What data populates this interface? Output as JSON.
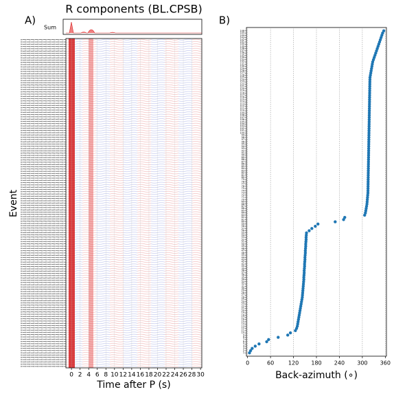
{
  "panel_labels": [
    "A)",
    "B)"
  ],
  "chart_data": [
    {
      "type": "waveform",
      "title": "R components (BL.CPSB)",
      "sum_label": "Sum",
      "xlabel": "Time after P (s)",
      "ylabel": "Event",
      "xlim": [
        -1.3,
        30.3
      ],
      "xticks": [
        0,
        2,
        4,
        6,
        8,
        10,
        12,
        14,
        16,
        18,
        20,
        22,
        24,
        26,
        28,
        30
      ]
    },
    {
      "type": "scatter",
      "xlabel": "Back-azimuth (∘)",
      "color": "#1f77b4",
      "grid": true,
      "xlim": [
        -3,
        363
      ],
      "xticks": [
        0,
        60,
        120,
        180,
        240,
        300,
        360
      ],
      "ylim": [
        -0.5,
        147.5
      ],
      "yticks": [
        1,
        2,
        3,
        4,
        5,
        6,
        7,
        8,
        9,
        10,
        11,
        12,
        13,
        14,
        15,
        16,
        17,
        18,
        19,
        20,
        21,
        22,
        23,
        24,
        25,
        26,
        27,
        28,
        29,
        30,
        31,
        32,
        33,
        34,
        35,
        36,
        37,
        38,
        39,
        40,
        41,
        42,
        43,
        44,
        45,
        46,
        47,
        48,
        49,
        50,
        51,
        52,
        53,
        54,
        55,
        56,
        57,
        58,
        59,
        60,
        61,
        62,
        63,
        64,
        65,
        66,
        67,
        68,
        69,
        70,
        71,
        72,
        73,
        74,
        75,
        76,
        77,
        78,
        79,
        80,
        81,
        82,
        83,
        84,
        85,
        86,
        87,
        88,
        89,
        90,
        91,
        92,
        93,
        94,
        95,
        96,
        97,
        98,
        99,
        100,
        101,
        102,
        103,
        104,
        105,
        106,
        107,
        108,
        109,
        110,
        111,
        112,
        113,
        114,
        115,
        116,
        117,
        118,
        119,
        120,
        121,
        122,
        123,
        124,
        125,
        126,
        127,
        128,
        129,
        130,
        131,
        132,
        133,
        134,
        135,
        136,
        137,
        138,
        139,
        140,
        141,
        142,
        143,
        144,
        145,
        146
      ],
      "y": [
        1,
        2,
        3,
        4,
        5,
        6,
        7,
        8,
        9,
        10,
        11,
        12,
        13,
        14,
        15,
        16,
        17,
        18,
        19,
        20,
        21,
        22,
        23,
        24,
        25,
        26,
        27,
        28,
        29,
        30,
        31,
        32,
        33,
        34,
        35,
        36,
        37,
        38,
        39,
        40,
        41,
        42,
        43,
        44,
        45,
        46,
        47,
        48,
        49,
        50,
        51,
        52,
        53,
        54,
        55,
        56,
        57,
        58,
        59,
        60,
        61,
        62,
        63,
        64,
        65,
        66,
        67,
        68,
        69,
        70,
        71,
        72,
        73,
        74,
        75,
        76,
        77,
        78,
        79,
        80,
        81,
        82,
        83,
        84,
        85,
        86,
        87,
        88,
        89,
        90,
        91,
        92,
        93,
        94,
        95,
        96,
        97,
        98,
        99,
        100,
        101,
        102,
        103,
        104,
        105,
        106,
        107,
        108,
        109,
        110,
        111,
        112,
        113,
        114,
        115,
        116,
        117,
        118,
        119,
        120,
        121,
        122,
        123,
        124,
        125,
        126,
        127,
        128,
        129,
        130,
        131,
        132,
        133,
        134,
        135,
        136,
        137,
        138,
        139,
        140,
        141,
        142,
        143,
        144,
        145,
        146
      ],
      "x": [
        5,
        8,
        12,
        20,
        30,
        50,
        55,
        80,
        105,
        112,
        125,
        128,
        130,
        131,
        132,
        133,
        134,
        135,
        136,
        137,
        138,
        139,
        140,
        141,
        142,
        143,
        143.5,
        144,
        144.5,
        145,
        145.5,
        146,
        146.5,
        147,
        147,
        147.5,
        148,
        148,
        148.5,
        149,
        149,
        149.5,
        150,
        150,
        150.5,
        151,
        151,
        151.5,
        152,
        152,
        152.5,
        153,
        153,
        153.5,
        154,
        161,
        168,
        177,
        184,
        229,
        251,
        254,
        306,
        308,
        309,
        310,
        311,
        312,
        312.5,
        313,
        313.5,
        314,
        314.6,
        314.7,
        314.8,
        314.9,
        315,
        315.1,
        315.2,
        315.3,
        315.4,
        315.5,
        315.6,
        315.7,
        315.8,
        315.9,
        316,
        316.1,
        316.2,
        316.3,
        316.4,
        316.5,
        316.6,
        316.7,
        316.8,
        316.9,
        317,
        317.1,
        317.2,
        317.3,
        317.4,
        317.5,
        317.6,
        317.7,
        317.8,
        317.9,
        318,
        318.1,
        318.2,
        318.3,
        318.4,
        318.5,
        318.6,
        318.7,
        318.8,
        318.9,
        319,
        319.1,
        319.2,
        319.3,
        319.4,
        319.5,
        319.6,
        319.8,
        320,
        321,
        322,
        323,
        324,
        325,
        326,
        327,
        329,
        331,
        333,
        335,
        337,
        339,
        341,
        343,
        345,
        347,
        349,
        351,
        353,
        356
      ]
    }
  ]
}
